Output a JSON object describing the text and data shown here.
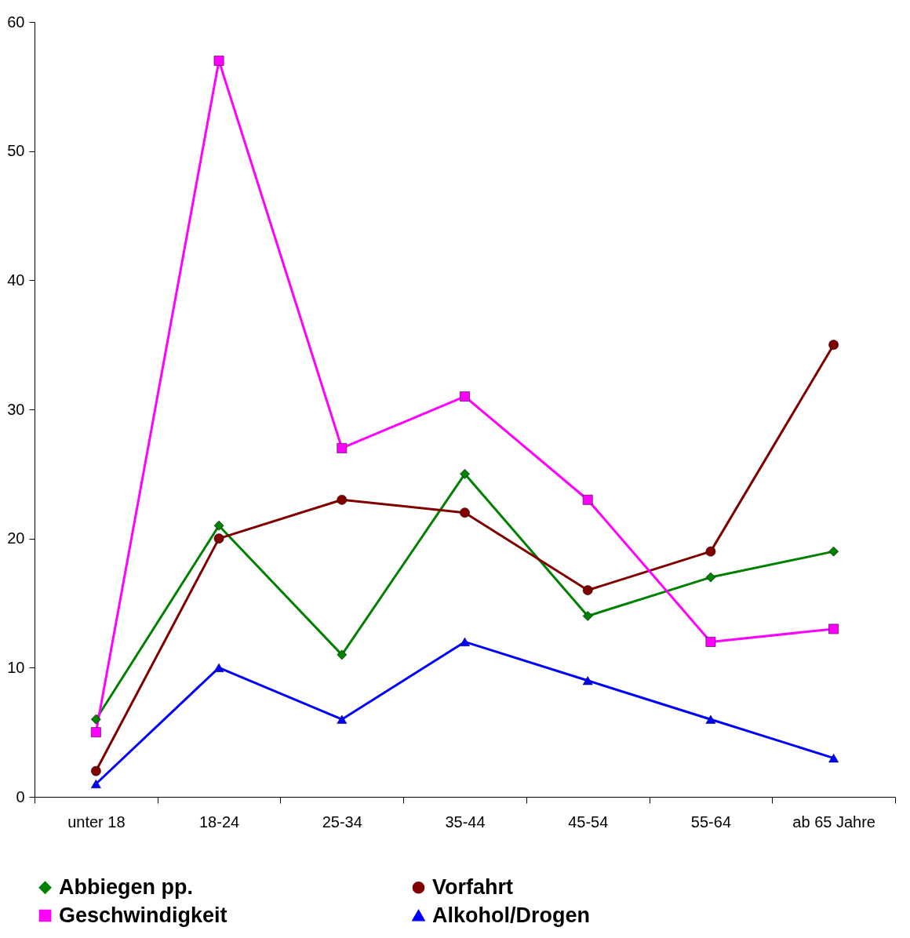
{
  "chart_data": {
    "type": "line",
    "categories": [
      "unter 18",
      "18-24",
      "25-34",
      "35-44",
      "45-54",
      "55-64",
      "ab 65 Jahre"
    ],
    "series": [
      {
        "name": "Abbiegen pp.",
        "color": "#008000",
        "marker": "diamond",
        "values": [
          6,
          21,
          11,
          25,
          14,
          17,
          19
        ]
      },
      {
        "name": "Vorfahrt",
        "color": "#800000",
        "marker": "circle",
        "values": [
          2,
          20,
          23,
          22,
          16,
          19,
          35
        ]
      },
      {
        "name": "Geschwindigkeit",
        "color": "#ff00ff",
        "marker": "square",
        "values": [
          5,
          57,
          27,
          31,
          23,
          12,
          13
        ]
      },
      {
        "name": "Alkohol/Drogen",
        "color": "#0000ff",
        "marker": "triangle",
        "values": [
          1,
          10,
          6,
          12,
          9,
          6,
          3
        ]
      }
    ],
    "ylim": [
      0,
      60
    ],
    "yticks": [
      0,
      10,
      20,
      30,
      40,
      50,
      60
    ],
    "grid": false,
    "legend": "bottom",
    "line_style": "solid"
  }
}
